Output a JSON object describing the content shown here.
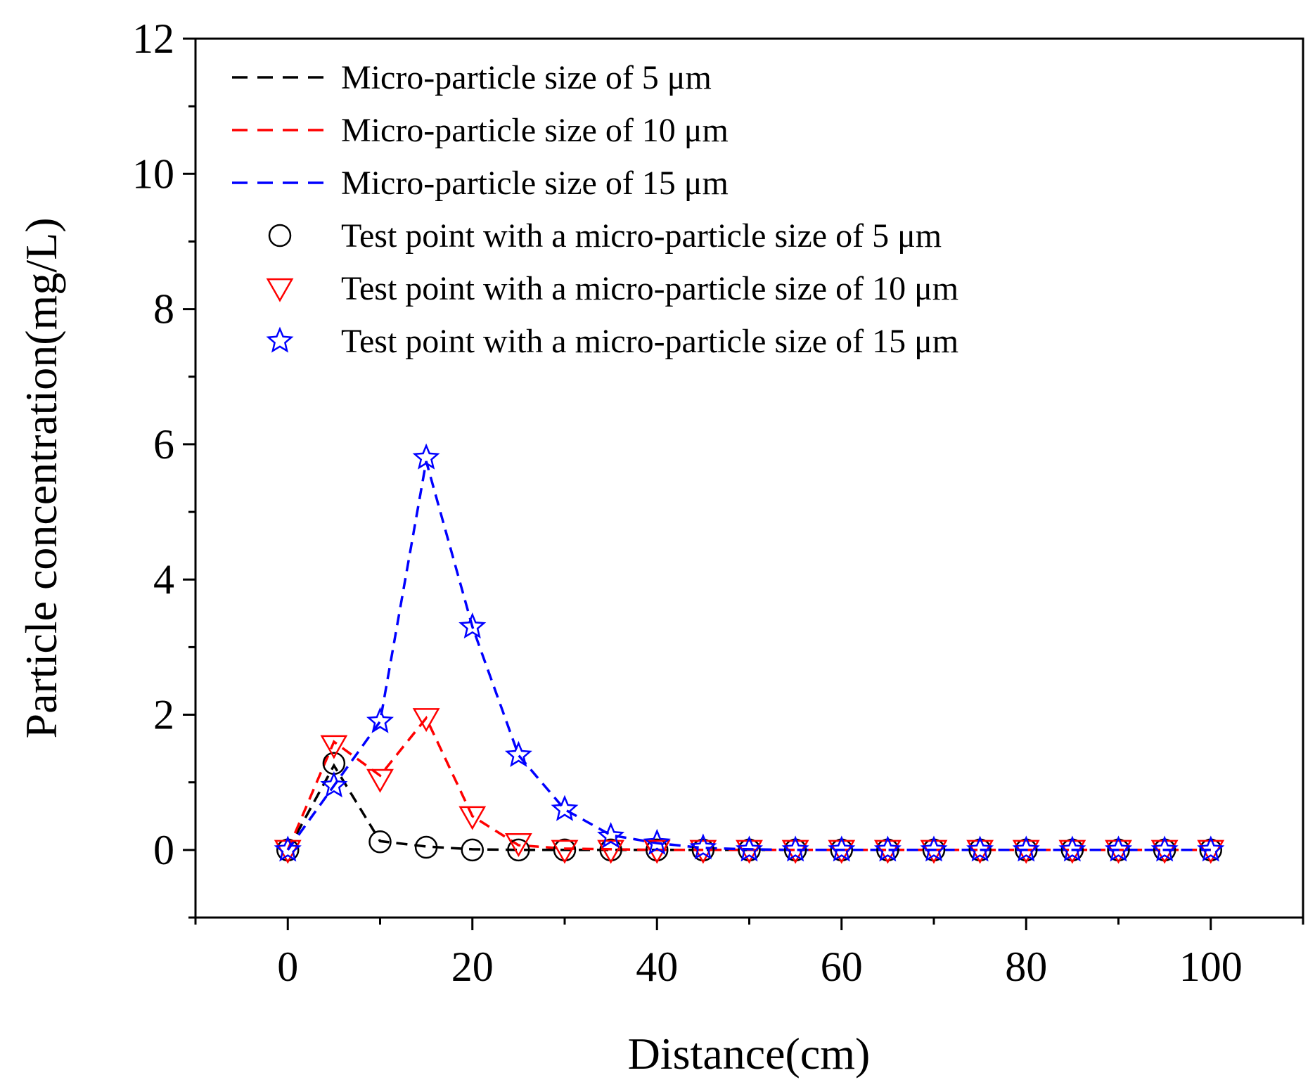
{
  "chart_data": {
    "type": "line",
    "xlabel": "Distance(cm)",
    "ylabel": "Particle concentration(mg/L)",
    "xlim": [
      -10,
      110
    ],
    "ylim": [
      -1,
      12
    ],
    "x_ticks": [
      0,
      20,
      40,
      60,
      80,
      100
    ],
    "y_ticks": [
      0,
      2,
      4,
      6,
      8,
      10,
      12
    ],
    "grid": false,
    "legend_position": "top-left",
    "x": [
      0,
      5,
      10,
      15,
      20,
      25,
      30,
      35,
      40,
      45,
      50,
      55,
      60,
      65,
      70,
      75,
      80,
      85,
      90,
      95,
      100
    ],
    "series": [
      {
        "name": "Micro-particle size of 5 μm",
        "kind": "line",
        "style": "dashed",
        "color": "#000000",
        "x": [
          0,
          5,
          10,
          15,
          20,
          25,
          30,
          35,
          40,
          45,
          50,
          55,
          60,
          65,
          70,
          75,
          80,
          85,
          90,
          95,
          100
        ],
        "values": [
          0,
          1.25,
          0.13,
          0.05,
          0.01,
          0.0,
          0,
          0,
          0,
          0,
          0,
          0,
          0,
          0,
          0,
          0,
          0,
          0,
          0,
          0,
          0
        ]
      },
      {
        "name": "Micro-particle size of 10 μm",
        "kind": "line",
        "style": "dashed",
        "color": "#ff0000",
        "x": [
          0,
          5,
          10,
          15,
          20,
          25,
          30,
          35,
          40,
          45,
          50,
          55,
          60,
          65,
          70,
          75,
          80,
          85,
          90,
          95,
          100
        ],
        "values": [
          0,
          1.6,
          1.1,
          1.95,
          0.5,
          0.07,
          0.02,
          0.01,
          0,
          0,
          0,
          0,
          0,
          0,
          0,
          0,
          0,
          0,
          0,
          0,
          0
        ]
      },
      {
        "name": "Micro-particle size of 15 μm",
        "kind": "line",
        "style": "dashed",
        "color": "#0000ff",
        "x": [
          0,
          5,
          10,
          15,
          20,
          25,
          30,
          35,
          40,
          45,
          50,
          55,
          60,
          65,
          70,
          75,
          80,
          85,
          90,
          95,
          100
        ],
        "values": [
          0,
          0.95,
          1.9,
          5.75,
          3.3,
          1.4,
          0.6,
          0.22,
          0.1,
          0.03,
          0.01,
          0,
          0,
          0,
          0,
          0,
          0,
          0,
          0,
          0,
          0
        ]
      },
      {
        "name": "Test point with a micro-particle size of 5 μm",
        "kind": "scatter",
        "marker": "circle",
        "color": "#000000",
        "x": [
          0,
          5,
          10,
          15,
          20,
          25,
          30,
          35,
          40,
          45,
          50,
          55,
          60,
          65,
          70,
          75,
          80,
          85,
          90,
          95,
          100
        ],
        "values": [
          0,
          1.28,
          0.12,
          0.04,
          0,
          0,
          0,
          0,
          0,
          0,
          0,
          0,
          0,
          0,
          0,
          0,
          0,
          0,
          0,
          0,
          0
        ]
      },
      {
        "name": "Test point with a micro-particle size of 10 μm",
        "kind": "scatter",
        "marker": "triangle-down",
        "color": "#ff0000",
        "x": [
          0,
          5,
          10,
          15,
          20,
          25,
          30,
          35,
          40,
          45,
          50,
          55,
          60,
          65,
          70,
          75,
          80,
          85,
          90,
          95,
          100
        ],
        "values": [
          0,
          1.55,
          1.05,
          1.95,
          0.5,
          0.1,
          0,
          0,
          0,
          0,
          0,
          0,
          0,
          0,
          0,
          0,
          0,
          0,
          0,
          0,
          0
        ]
      },
      {
        "name": "Test point with a micro-particle size of 15 μm",
        "kind": "scatter",
        "marker": "star",
        "color": "#0000ff",
        "x": [
          0,
          5,
          10,
          15,
          20,
          25,
          30,
          35,
          40,
          45,
          50,
          55,
          60,
          65,
          70,
          75,
          80,
          85,
          90,
          95,
          100
        ],
        "values": [
          0,
          0.95,
          1.9,
          5.8,
          3.3,
          1.4,
          0.6,
          0.2,
          0.1,
          0.03,
          0,
          0,
          0,
          0,
          0,
          0,
          0,
          0,
          0,
          0,
          0
        ]
      }
    ]
  }
}
